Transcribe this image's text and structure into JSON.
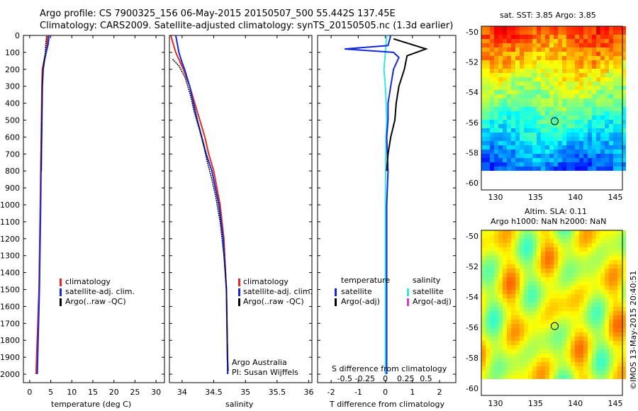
{
  "header": {
    "line1": "Argo profile: CS 7900325_156 06-May-2015 20150507_500 55.442S 137.45E",
    "line2": "Climatology: CARS2009. Satellite-adjusted climatology: synTS_20150505.nc (1.3d earlier)"
  },
  "depth_ticks": [
    0,
    100,
    200,
    300,
    400,
    500,
    600,
    700,
    800,
    900,
    1000,
    1100,
    1200,
    1300,
    1400,
    1500,
    1600,
    1700,
    1800,
    1900,
    2000
  ],
  "temp_panel": {
    "xlabel": "temperature (deg C)",
    "x_ticks": [
      "0",
      "5",
      "10",
      "15",
      "20",
      "25",
      "30"
    ],
    "legend": [
      "climatology",
      "satellite-adj. clim.",
      "Argo(..raw -QC)"
    ]
  },
  "sal_panel": {
    "xlabel": "salinity",
    "x_ticks": [
      "34",
      "34.5",
      "35",
      "35.5",
      "36"
    ],
    "legend": [
      "climatology",
      "satellite-adj. clim.",
      "Argo(..raw -QC)"
    ],
    "note1": "Argo Australia",
    "note2": "PI: Susan Wijffels"
  },
  "diff_panel": {
    "xlabel_bottom": "T difference from climatology",
    "xlabel_top": "S difference from climatology",
    "bottom_ticks": [
      "-2",
      "-1",
      "0",
      "1",
      "2"
    ],
    "top_ticks": [
      "-0.5",
      "-0.25",
      "0",
      "0.25",
      "0.5"
    ],
    "temp_legend_title": "temperature",
    "temp_legend": [
      "satellite",
      "Argo(-adj)"
    ],
    "sal_legend_title": "salinity",
    "sal_legend": [
      "satellite",
      "Argo(-adj)"
    ]
  },
  "sst_map": {
    "title": "sat. SST: 3.85 Argo: 3.85",
    "y_ticks": [
      "-50",
      "-52",
      "-54",
      "-56",
      "-58",
      "-60"
    ],
    "x_ticks": [
      "130",
      "135",
      "140",
      "145"
    ]
  },
  "sla_map": {
    "title1": "Altim. SLA: 0.11",
    "title2": "Argo h1000: NaN h2000: NaN",
    "y_ticks": [
      "-50",
      "-52",
      "-54",
      "-56",
      "-58",
      "-60"
    ],
    "x_ticks": [
      "130",
      "135",
      "140",
      "145"
    ]
  },
  "credit": "©IMOS 13-May-2015 20:40:51",
  "colors": {
    "climatology": "#e8281e",
    "satellite_adj": "#1428dc",
    "argo": "#000000",
    "sal_satellite": "#33e6e6",
    "sal_argo": "#d43cd4"
  },
  "chart_data": [
    {
      "type": "line",
      "name": "temperature profile",
      "xlabel": "temperature (deg C)",
      "ylabel": "",
      "xlim": [
        -1.5,
        32
      ],
      "ylim": [
        2050,
        0
      ],
      "series": [
        {
          "name": "climatology",
          "depth": [
            0,
            50,
            100,
            150,
            200,
            300,
            500,
            800,
            1000,
            1500,
            2000
          ],
          "values": [
            4.2,
            4.1,
            3.9,
            3.4,
            3.0,
            2.9,
            2.8,
            2.6,
            2.5,
            2.2,
            1.5
          ]
        },
        {
          "name": "satellite-adj. clim.",
          "depth": [
            0,
            50,
            100,
            150,
            200,
            300,
            500,
            800,
            1000,
            1500,
            2000
          ],
          "values": [
            4.6,
            4.4,
            3.9,
            3.5,
            3.2,
            3.0,
            2.9,
            2.7,
            2.6,
            2.3,
            1.8
          ]
        },
        {
          "name": "Argo(..raw -QC)",
          "depth": [
            5,
            50,
            100,
            150,
            200,
            300,
            500,
            800
          ],
          "values": [
            4.0,
            3.8,
            3.7,
            3.4,
            3.2,
            3.0,
            2.9,
            2.8
          ]
        }
      ]
    },
    {
      "type": "line",
      "name": "salinity profile",
      "xlabel": "salinity",
      "xlim": [
        33.8,
        36.05
      ],
      "ylim": [
        2050,
        0
      ],
      "series": [
        {
          "name": "climatology",
          "depth": [
            0,
            100,
            150,
            200,
            300,
            400,
            500,
            600,
            700,
            800,
            1000,
            1200,
            1500,
            2000
          ],
          "values": [
            33.82,
            33.9,
            33.96,
            34.02,
            34.12,
            34.2,
            34.28,
            34.36,
            34.42,
            34.5,
            34.6,
            34.66,
            34.7,
            34.72
          ]
        },
        {
          "name": "satellite-adj. clim.",
          "depth": [
            0,
            100,
            150,
            200,
            300,
            400,
            500,
            600,
            700,
            800,
            1000,
            1200,
            1500,
            2000
          ],
          "values": [
            33.9,
            33.95,
            33.99,
            34.04,
            34.12,
            34.18,
            34.24,
            34.31,
            34.38,
            34.47,
            34.58,
            34.65,
            34.7,
            34.72
          ]
        },
        {
          "name": "Argo(..raw -QC)",
          "depth": [
            140,
            180,
            250,
            350,
            450,
            550,
            650,
            750,
            850,
            950,
            1100,
            1300,
            1500,
            1700,
            1900,
            1980
          ],
          "values": [
            33.85,
            33.95,
            34.05,
            34.13,
            34.19,
            34.27,
            34.34,
            34.4,
            34.47,
            34.53,
            34.6,
            34.66,
            34.7,
            34.71,
            34.72,
            34.73
          ]
        }
      ]
    },
    {
      "type": "line",
      "name": "difference from climatology",
      "xlabel": "T difference from climatology",
      "xlim": [
        -2.5,
        2.6
      ],
      "ylim": [
        2050,
        0
      ],
      "series": [
        {
          "name": "temperature satellite",
          "depth": [
            0,
            60,
            80,
            100,
            130,
            200,
            300,
            400,
            500,
            600,
            800,
            1000,
            1500,
            2000
          ],
          "values": [
            0.2,
            0.1,
            -1.5,
            0.3,
            0.5,
            0.3,
            0.2,
            0.1,
            0.1,
            0.05,
            0.1,
            0.05,
            0.05,
            0.05
          ]
        },
        {
          "name": "temperature Argo(-adj)",
          "depth": [
            20,
            80,
            120,
            200,
            300,
            400,
            500,
            600,
            700,
            800
          ],
          "values": [
            0.3,
            1.5,
            0.8,
            0.7,
            0.5,
            0.4,
            0.35,
            0.2,
            0.1,
            0.05
          ]
        },
        {
          "name": "salinity satellite",
          "depth": [
            0,
            100,
            200,
            300,
            400,
            500,
            600,
            800,
            1000,
            1500,
            2000
          ],
          "values": [
            0.05,
            0.0,
            -0.05,
            0.0,
            0.03,
            0.05,
            0.02,
            0.01,
            0.0,
            0.0,
            0.0
          ]
        }
      ]
    }
  ]
}
